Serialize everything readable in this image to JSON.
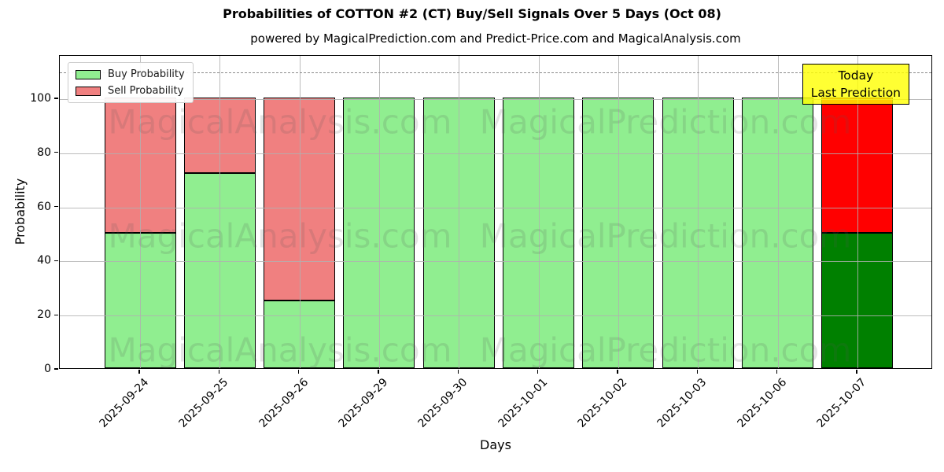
{
  "figure": {
    "title": "Probabilities of COTTON #2 (CT) Buy/Sell Signals Over 5 Days (Oct 08)",
    "subtitle": "powered by MagicalPrediction.com and Predict-Price.com and MagicalAnalysis.com"
  },
  "chart_data": {
    "type": "bar",
    "stacked": true,
    "title": "Probabilities of COTTON #2 (CT) Buy/Sell Signals Over 5 Days (Oct 08)",
    "xlabel": "Days",
    "ylabel": "Probability",
    "categories": [
      "2025-09-24",
      "2025-09-25",
      "2025-09-26",
      "2025-09-29",
      "2025-09-30",
      "2025-10-01",
      "2025-10-02",
      "2025-10-03",
      "2025-10-06",
      "2025-10-07"
    ],
    "series": [
      {
        "name": "Buy Probability",
        "values": [
          50,
          72,
          25,
          100,
          100,
          100,
          100,
          100,
          100,
          50
        ]
      },
      {
        "name": "Sell Probability",
        "values": [
          50,
          28,
          75,
          0,
          0,
          0,
          0,
          0,
          0,
          50
        ]
      }
    ],
    "y_ticks": [
      0,
      20,
      40,
      60,
      80,
      100
    ],
    "ylim": [
      0,
      116
    ],
    "dashed_guide_y": 110,
    "grid": true,
    "legend_position": "upper-left",
    "today_index": 9
  },
  "legend": {
    "items": [
      {
        "label": "Buy Probability",
        "color": "#90EE90"
      },
      {
        "label": "Sell Probability",
        "color": "#F08080"
      }
    ]
  },
  "annotation": {
    "line1": "Today",
    "line2": "Last Prediction",
    "bg_color": "#FFFF00"
  },
  "watermarks": {
    "left": "MagicalAnalysis.com",
    "right": "MagicalPrediction.com"
  },
  "colors": {
    "buy": "#90EE90",
    "sell": "#F08080",
    "today_buy": "#008000",
    "today_sell": "#FF0000",
    "bar_edge": "#000000",
    "grid": "#b0b0b0",
    "dashed_line": "#8a8a8a",
    "annotation_bg": "#FFFF00"
  }
}
